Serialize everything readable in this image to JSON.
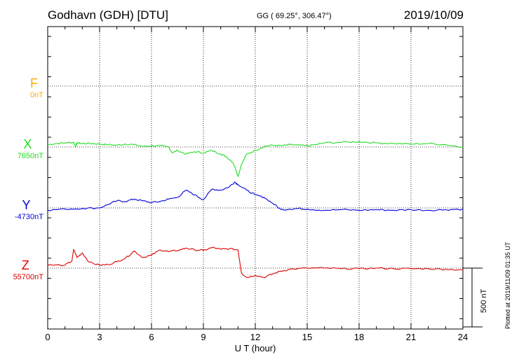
{
  "header": {
    "station": "Godhavn (GDH)  [DTU]",
    "coords": "GG ( 69.25°, 306.47°)",
    "date": "2019/10/09"
  },
  "side_note": "Plotted at 2019/11/09 01:35 UT",
  "scale_label": "500 nT",
  "components": [
    {
      "letter": "F",
      "baseline": "0nT",
      "color": "#ffaa00"
    },
    {
      "letter": "X",
      "baseline": "7650nT",
      "color": "#22dd22"
    },
    {
      "letter": "Y",
      "baseline": "-4730nT",
      "color": "#0000dd"
    },
    {
      "letter": "Z",
      "baseline": "55700nT",
      "color": "#dd0000"
    }
  ],
  "chart_data": {
    "type": "line",
    "xlabel": "U T (hour)",
    "xlim": [
      0,
      24
    ],
    "xticks": [
      "0",
      "3",
      "6",
      "9",
      "12",
      "15",
      "18",
      "21",
      "24"
    ],
    "y_units": "nT, offset from each component's baseline",
    "series": [
      {
        "name": "X",
        "baseline": 7650,
        "color": "#22dd22",
        "points": [
          [
            0,
            20
          ],
          [
            0.5,
            30
          ],
          [
            1,
            35
          ],
          [
            1.5,
            40
          ],
          [
            1.6,
            5
          ],
          [
            1.7,
            35
          ],
          [
            2,
            30
          ],
          [
            2.5,
            30
          ],
          [
            3,
            25
          ],
          [
            3.5,
            20
          ],
          [
            4,
            15
          ],
          [
            4.5,
            25
          ],
          [
            5,
            20
          ],
          [
            5.5,
            5
          ],
          [
            6,
            10
          ],
          [
            6.5,
            10
          ],
          [
            7,
            0
          ],
          [
            7.2,
            -50
          ],
          [
            7.5,
            -30
          ],
          [
            8,
            -60
          ],
          [
            8.5,
            -40
          ],
          [
            9,
            -50
          ],
          [
            9.5,
            -30
          ],
          [
            10,
            -60
          ],
          [
            10.3,
            -80
          ],
          [
            10.7,
            -130
          ],
          [
            10.9,
            -200
          ],
          [
            11,
            -250
          ],
          [
            11.2,
            -150
          ],
          [
            11.5,
            -60
          ],
          [
            12,
            -30
          ],
          [
            12.5,
            5
          ],
          [
            13,
            15
          ],
          [
            13.5,
            10
          ],
          [
            14,
            20
          ],
          [
            14.5,
            15
          ],
          [
            15,
            10
          ],
          [
            15.5,
            20
          ],
          [
            16,
            35
          ],
          [
            17,
            40
          ],
          [
            18,
            45
          ],
          [
            19,
            35
          ],
          [
            20,
            30
          ],
          [
            21,
            25
          ],
          [
            22,
            30
          ],
          [
            23,
            20
          ],
          [
            24,
            0
          ]
        ]
      },
      {
        "name": "Y",
        "baseline": -4730,
        "color": "#0000dd",
        "points": [
          [
            0,
            -20
          ],
          [
            1,
            -10
          ],
          [
            2,
            -5
          ],
          [
            3,
            0
          ],
          [
            3.5,
            30
          ],
          [
            4,
            60
          ],
          [
            4.5,
            55
          ],
          [
            5,
            75
          ],
          [
            5.5,
            60
          ],
          [
            6,
            45
          ],
          [
            6.5,
            55
          ],
          [
            7,
            75
          ],
          [
            7.5,
            90
          ],
          [
            8,
            150
          ],
          [
            8.5,
            110
          ],
          [
            9,
            70
          ],
          [
            9.5,
            160
          ],
          [
            10,
            150
          ],
          [
            10.5,
            180
          ],
          [
            10.8,
            220
          ],
          [
            11,
            200
          ],
          [
            11.5,
            150
          ],
          [
            12,
            110
          ],
          [
            12.5,
            90
          ],
          [
            13,
            40
          ],
          [
            13.5,
            -15
          ],
          [
            14,
            -10
          ],
          [
            14.5,
            -5
          ],
          [
            15,
            -10
          ],
          [
            16,
            -20
          ],
          [
            17,
            -15
          ],
          [
            18,
            -20
          ],
          [
            19,
            -15
          ],
          [
            20,
            -20
          ],
          [
            21,
            -15
          ],
          [
            22,
            -20
          ],
          [
            23,
            -15
          ],
          [
            24,
            -10
          ]
        ]
      },
      {
        "name": "Z",
        "baseline": 55700,
        "color": "#dd0000",
        "points": [
          [
            0,
            25
          ],
          [
            1,
            25
          ],
          [
            1.4,
            60
          ],
          [
            1.5,
            160
          ],
          [
            1.7,
            90
          ],
          [
            2,
            130
          ],
          [
            2.4,
            50
          ],
          [
            3,
            25
          ],
          [
            3.5,
            30
          ],
          [
            4,
            55
          ],
          [
            4.5,
            85
          ],
          [
            5,
            145
          ],
          [
            5.5,
            90
          ],
          [
            6,
            110
          ],
          [
            6.5,
            155
          ],
          [
            7,
            140
          ],
          [
            7.5,
            150
          ],
          [
            8,
            170
          ],
          [
            8.5,
            155
          ],
          [
            9,
            150
          ],
          [
            9.5,
            175
          ],
          [
            10,
            160
          ],
          [
            10.5,
            165
          ],
          [
            11,
            155
          ],
          [
            11.2,
            -40
          ],
          [
            11.5,
            -80
          ],
          [
            12,
            -60
          ],
          [
            12.5,
            -80
          ],
          [
            13,
            -50
          ],
          [
            13.5,
            -25
          ],
          [
            14,
            -10
          ],
          [
            15,
            0
          ],
          [
            16,
            0
          ],
          [
            17,
            -5
          ],
          [
            18,
            -5
          ],
          [
            19,
            0
          ],
          [
            20,
            -5
          ],
          [
            21,
            -5
          ],
          [
            22,
            -5
          ],
          [
            23,
            -10
          ],
          [
            24,
            -15
          ]
        ]
      }
    ]
  }
}
